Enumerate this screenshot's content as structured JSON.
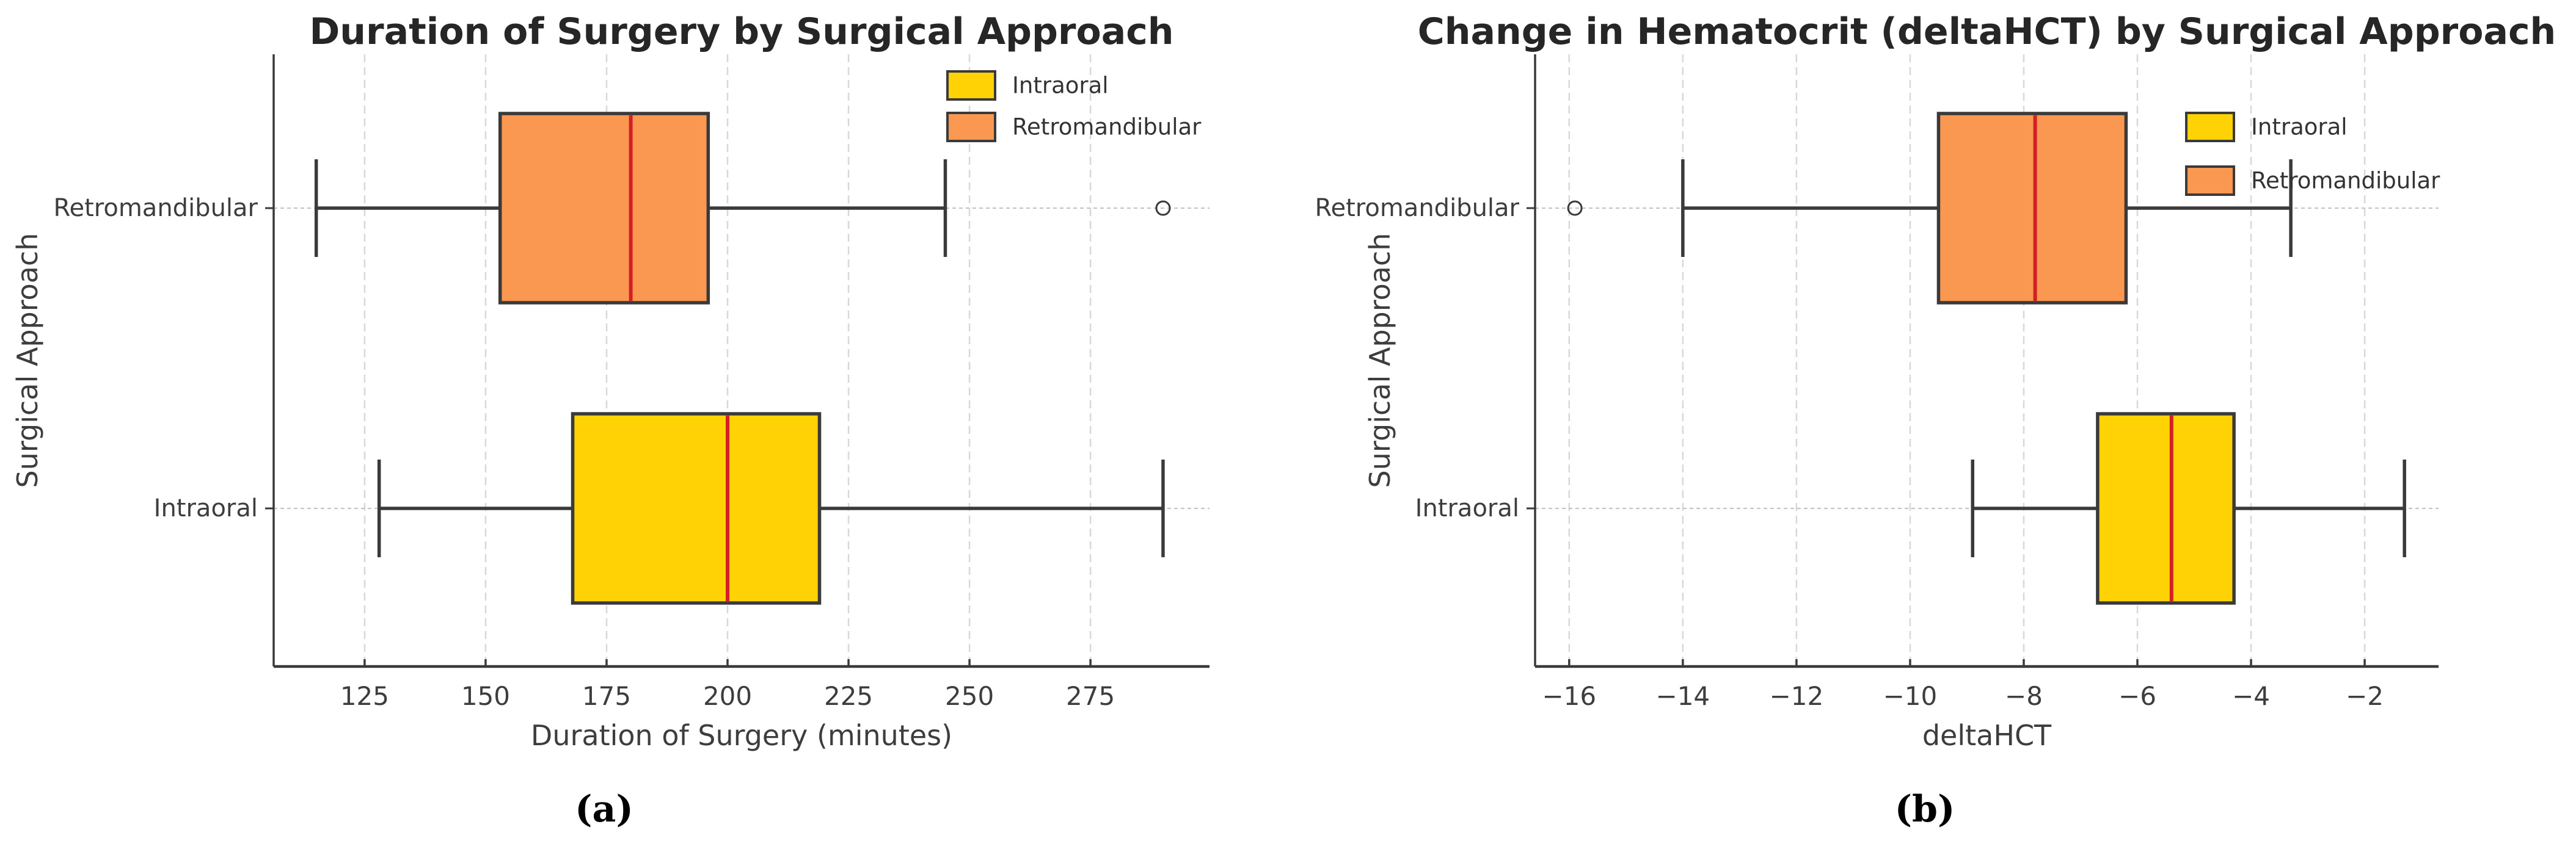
{
  "chart_data": [
    {
      "type": "boxplot",
      "orientation": "horizontal",
      "caption": "(a)",
      "title": "Duration of Surgery by Surgical Approach",
      "xlabel": "Duration of Surgery (minutes)",
      "ylabel": "Surgical Approach",
      "xlim": [
        106.2,
        299.6
      ],
      "xticks": [
        125,
        150,
        175,
        200,
        225,
        250,
        275
      ],
      "grid": "vertical-dashed",
      "legend_position": "upper right",
      "legend": [
        {
          "label": "Intraoral",
          "color": "#FFD205"
        },
        {
          "label": "Retromandibular",
          "color": "#FA9852"
        }
      ],
      "series": [
        {
          "name": "Retromandibular",
          "color": "#FA9852",
          "whisker_low": 115,
          "q1": 153,
          "median": 180,
          "q3": 196,
          "whisker_high": 245,
          "outliers": [
            290
          ]
        },
        {
          "name": "Intraoral",
          "color": "#FFD205",
          "whisker_low": 128,
          "q1": 168,
          "median": 200,
          "q3": 219,
          "whisker_high": 290,
          "outliers": []
        }
      ]
    },
    {
      "type": "boxplot",
      "orientation": "horizontal",
      "caption": "(b)",
      "title": "Change in Hematocrit (deltaHCT) by Surgical Approach",
      "xlabel": "deltaHCT",
      "ylabel": "Surgical Approach",
      "xlim": [
        -16.6,
        -0.7
      ],
      "xticks": [
        -16,
        -14,
        -12,
        -10,
        -8,
        -6,
        -4,
        -2
      ],
      "grid": "vertical-dashed",
      "legend_position": "upper right",
      "legend": [
        {
          "label": "Intraoral",
          "color": "#FFD205"
        },
        {
          "label": "Retromandibular",
          "color": "#FA9852"
        }
      ],
      "series": [
        {
          "name": "Retromandibular",
          "color": "#FA9852",
          "whisker_low": -14.0,
          "q1": -9.5,
          "median": -7.8,
          "q3": -6.2,
          "whisker_high": -3.3,
          "outliers": [
            -15.9
          ]
        },
        {
          "name": "Intraoral",
          "color": "#FFD205",
          "whisker_low": -8.9,
          "q1": -6.7,
          "median": -5.4,
          "q3": -4.3,
          "whisker_high": -1.3,
          "outliers": []
        }
      ]
    }
  ],
  "style_colors": {
    "box_edge": "#3a3a3a",
    "median": "#D41F26",
    "gridline": "#d8d8d8",
    "category_line": "#c6c6c6",
    "axis": "#3a3a3a",
    "text": "#3d3d3d",
    "title": "#262626"
  }
}
